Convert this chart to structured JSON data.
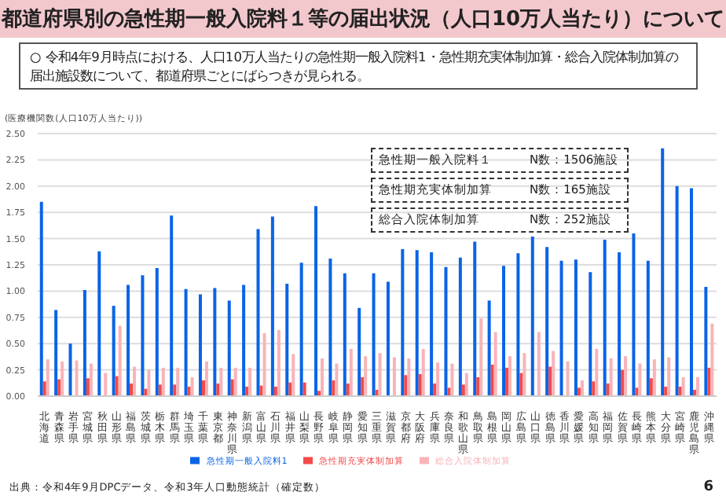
{
  "chart_data": {
    "type": "bar",
    "title": "都道府県別の急性期一般入院料１等の届出状況（人口10万人当たり）について",
    "subtitle": "○ 令和4年9月時点における、人口10万人当たりの急性期一般入院料1・急性期充実体制加算・総合入院体制加算の届出施設数について、都道府県ごとにばらつきが見られる。",
    "ylabel": "(医療機関数(人口10万人当たり))",
    "categories": [
      "北海道",
      "青森県",
      "岩手県",
      "宮城県",
      "秋田県",
      "山形県",
      "福島県",
      "茨城県",
      "栃木県",
      "群馬県",
      "埼玉県",
      "千葉県",
      "東京都",
      "神奈川県",
      "新潟県",
      "富山県",
      "石川県",
      "福井県",
      "山梨県",
      "長野県",
      "岐阜県",
      "静岡県",
      "愛知県",
      "三重県",
      "滋賀県",
      "京都府",
      "大阪府",
      "兵庫県",
      "奈良県",
      "和歌山県",
      "鳥取県",
      "島根県",
      "岡山県",
      "広島県",
      "山口県",
      "徳島県",
      "香川県",
      "愛媛県",
      "高知県",
      "福岡県",
      "佐賀県",
      "長崎県",
      "熊本県",
      "大分県",
      "宮崎県",
      "鹿児島県",
      "沖縄県"
    ],
    "series": [
      {
        "name": "急性期一般入院料1",
        "color": "#0a64e6",
        "values": [
          1.85,
          0.82,
          0.5,
          1.01,
          1.38,
          0.86,
          1.06,
          1.15,
          1.22,
          1.72,
          1.02,
          0.97,
          1.03,
          0.91,
          1.06,
          1.59,
          1.71,
          1.07,
          1.27,
          1.81,
          1.31,
          1.17,
          0.84,
          1.17,
          1.09,
          1.4,
          1.39,
          1.37,
          1.23,
          1.32,
          1.47,
          0.91,
          1.24,
          1.36,
          1.52,
          1.42,
          1.29,
          1.3,
          1.18,
          1.49,
          1.37,
          1.55,
          1.29,
          2.36,
          2.0,
          1.98,
          1.04
        ]
      },
      {
        "name": "急性期充実体制加算",
        "color": "#f24a4a",
        "values": [
          0.14,
          0.16,
          0,
          0.17,
          0,
          0.19,
          0.12,
          0.07,
          0.11,
          0.11,
          0.09,
          0.15,
          0.12,
          0.16,
          0.09,
          0.1,
          0.09,
          0.13,
          0.13,
          0.05,
          0.15,
          0.12,
          0.18,
          0.06,
          0,
          0.2,
          0.21,
          0.12,
          0.08,
          0.11,
          0.18,
          0.3,
          0.27,
          0.22,
          0,
          0.28,
          0,
          0.08,
          0.14,
          0.12,
          0.25,
          0.08,
          0.17,
          0.09,
          0.09,
          0.06,
          0.27
        ]
      },
      {
        "name": "総合入院体制加算",
        "color": "#f8b4b8",
        "values": [
          0.35,
          0.33,
          0.34,
          0.31,
          0.22,
          0.67,
          0.28,
          0.25,
          0.27,
          0.27,
          0.18,
          0.33,
          0.27,
          0.27,
          0.27,
          0.6,
          0.63,
          0.4,
          0,
          0.36,
          0.31,
          0.45,
          0.38,
          0.41,
          0.37,
          0.36,
          0.45,
          0.32,
          0.31,
          0.22,
          0.74,
          0.61,
          0.38,
          0.41,
          0.61,
          0.43,
          0.33,
          0.15,
          0.45,
          0.36,
          0.38,
          0.31,
          0.35,
          0.37,
          0.18,
          0.18,
          0.69
        ]
      }
    ],
    "ylim": [
      0,
      2.5
    ],
    "yticks": [
      {
        "value": 0,
        "label": "0.00"
      },
      {
        "value": 0.25,
        "label": "0.25"
      },
      {
        "value": 0.5,
        "label": "0.50"
      },
      {
        "value": 0.75,
        "label": "0.75"
      },
      {
        "value": 1,
        "label": "1.00"
      },
      {
        "value": 1.25,
        "label": "1.25"
      },
      {
        "value": 1.5,
        "label": "1.50"
      },
      {
        "value": 1.75,
        "label": "1.75"
      },
      {
        "value": 2,
        "label": "2.00"
      },
      {
        "value": 2.25,
        "label": "2.25"
      },
      {
        "value": 2.5,
        "label": "2.50"
      }
    ],
    "grid": "y",
    "legend": "bottom",
    "annotations": [
      "急性期一般入院料１　　　N数：1506施設",
      "急性期充実体制加算　　　N数：165施設",
      "総合入院体制加算　　　　N数：252施設",
      "出典：令和4年9月DPCデータ、令和3年人口動態統計（確定数）",
      "6"
    ]
  }
}
